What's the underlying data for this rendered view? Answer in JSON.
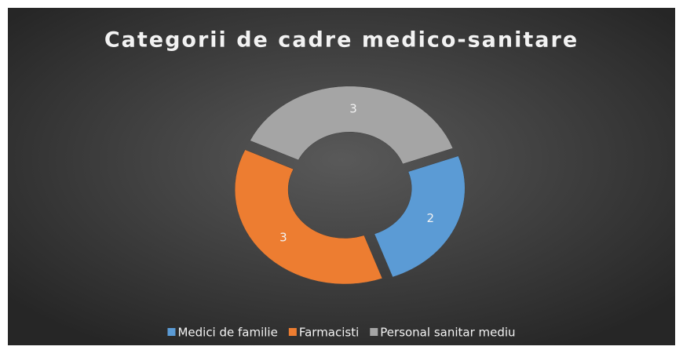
{
  "chart_data": {
    "type": "donut",
    "title": "Categorii de cadre medico-sanitare",
    "categories": [
      "Medici de familie",
      "Farmacisti",
      "Personal sanitar mediu"
    ],
    "values": [
      2,
      3,
      3
    ],
    "colors": [
      "#5b9bd5",
      "#ed7d31",
      "#a5a5a5"
    ],
    "legend": "bottom"
  }
}
